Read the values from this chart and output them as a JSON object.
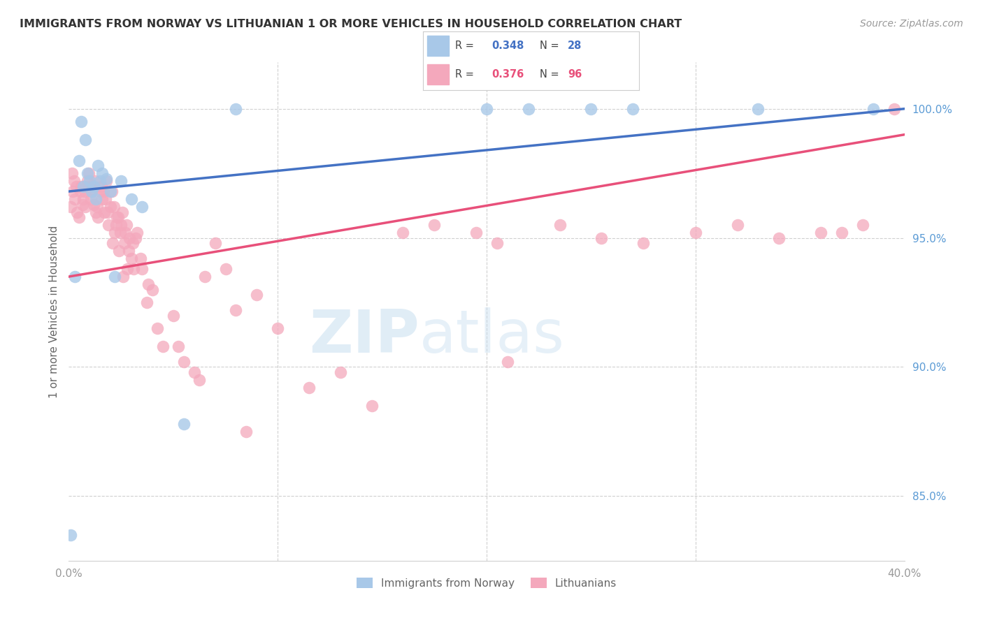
{
  "title": "IMMIGRANTS FROM NORWAY VS LITHUANIAN 1 OR MORE VEHICLES IN HOUSEHOLD CORRELATION CHART",
  "source": "Source: ZipAtlas.com",
  "ylabel_label": "1 or more Vehicles in Household",
  "y_ticks": [
    85.0,
    90.0,
    95.0,
    100.0
  ],
  "x_ticks": [
    0.0,
    10.0,
    20.0,
    30.0,
    40.0
  ],
  "x_range": [
    0.0,
    40.0
  ],
  "y_range": [
    82.5,
    101.8
  ],
  "legend_norway_R": "0.348",
  "legend_norway_N": "28",
  "legend_lith_R": "0.376",
  "legend_lith_N": "96",
  "norway_color": "#A8C8E8",
  "lith_color": "#F4A8BC",
  "norway_line_color": "#4472C4",
  "lith_line_color": "#E8507A",
  "norway_x": [
    0.1,
    0.3,
    0.5,
    0.6,
    0.7,
    0.8,
    0.9,
    1.0,
    1.1,
    1.2,
    1.3,
    1.4,
    1.5,
    1.6,
    1.8,
    2.0,
    2.2,
    2.5,
    3.0,
    3.5,
    5.5,
    8.0,
    20.0,
    22.0,
    25.0,
    27.0,
    33.0,
    38.5
  ],
  "norway_y": [
    83.5,
    93.5,
    98.0,
    99.5,
    97.0,
    98.8,
    97.5,
    97.2,
    96.8,
    97.0,
    96.5,
    97.8,
    97.2,
    97.5,
    97.3,
    96.8,
    93.5,
    97.2,
    96.5,
    96.2,
    87.8,
    100.0,
    100.0,
    100.0,
    100.0,
    100.0,
    100.0,
    100.0
  ],
  "lith_x": [
    0.1,
    0.2,
    0.3,
    0.4,
    0.5,
    0.6,
    0.7,
    0.8,
    0.9,
    1.0,
    1.1,
    1.2,
    1.3,
    1.4,
    1.5,
    1.6,
    1.7,
    1.8,
    1.9,
    2.0,
    2.1,
    2.2,
    2.3,
    2.4,
    2.5,
    2.6,
    2.7,
    2.8,
    2.9,
    3.0,
    3.1,
    3.2,
    3.5,
    3.8,
    4.0,
    4.5,
    5.0,
    5.5,
    6.0,
    6.5,
    7.0,
    7.5,
    8.0,
    9.0,
    10.0,
    11.5,
    13.0,
    14.5,
    16.0,
    17.5,
    19.5,
    21.0,
    23.5,
    25.5,
    27.5,
    30.0,
    32.0,
    34.0,
    36.0,
    38.0,
    39.5
  ],
  "lith_y": [
    96.2,
    96.8,
    96.5,
    96.0,
    95.8,
    97.0,
    96.5,
    96.2,
    97.2,
    97.0,
    96.8,
    96.3,
    96.0,
    95.8,
    96.8,
    96.5,
    96.0,
    97.2,
    95.5,
    96.2,
    94.8,
    95.2,
    95.8,
    94.5,
    95.5,
    93.5,
    95.2,
    93.8,
    95.0,
    94.2,
    93.8,
    95.0,
    93.8,
    93.2,
    93.0,
    90.8,
    92.0,
    90.2,
    89.8,
    93.5,
    94.8,
    93.8,
    92.2,
    92.8,
    91.5,
    89.2,
    89.8,
    88.5,
    95.2,
    95.5,
    95.2,
    90.2,
    95.5,
    95.0,
    94.8,
    95.2,
    95.5,
    95.0,
    95.2,
    95.5,
    100.0
  ],
  "lith_x2": [
    0.15,
    0.25,
    0.35,
    0.55,
    0.65,
    0.75,
    0.85,
    0.95,
    1.05,
    1.15,
    1.25,
    1.35,
    1.55,
    1.65,
    1.75,
    1.85,
    2.05,
    2.15,
    2.25,
    2.35,
    2.45,
    2.55,
    2.65,
    2.75,
    2.85,
    3.05,
    3.25,
    3.45,
    3.75,
    4.25,
    5.25,
    6.25,
    8.5,
    20.5,
    37.0
  ],
  "lith_y2": [
    97.5,
    97.2,
    97.0,
    96.8,
    96.3,
    96.8,
    97.0,
    97.5,
    96.5,
    97.0,
    97.2,
    96.2,
    97.0,
    96.8,
    96.5,
    96.0,
    96.8,
    96.2,
    95.5,
    95.8,
    95.2,
    96.0,
    94.8,
    95.5,
    94.5,
    94.8,
    95.2,
    94.2,
    92.5,
    91.5,
    90.8,
    89.5,
    87.5,
    94.8,
    95.2
  ]
}
